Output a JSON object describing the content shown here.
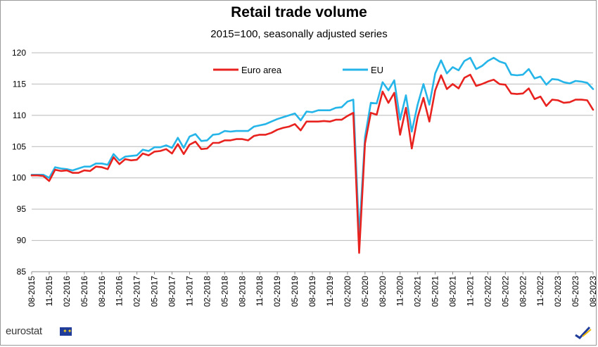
{
  "chart_data": {
    "type": "line",
    "title": "Retail trade volume",
    "subtitle": "2015=100, seasonally adjusted series",
    "ylim": [
      85,
      120
    ],
    "yticks": [
      85,
      90,
      95,
      100,
      105,
      110,
      115,
      120
    ],
    "grid": true,
    "legend_position": "top",
    "x": [
      "08-2015",
      "09-2015",
      "10-2015",
      "11-2015",
      "12-2015",
      "01-2016",
      "02-2016",
      "03-2016",
      "04-2016",
      "05-2016",
      "06-2016",
      "07-2016",
      "08-2016",
      "09-2016",
      "10-2016",
      "11-2016",
      "12-2016",
      "01-2017",
      "02-2017",
      "03-2017",
      "04-2017",
      "05-2017",
      "06-2017",
      "07-2017",
      "08-2017",
      "09-2017",
      "10-2017",
      "11-2017",
      "12-2017",
      "01-2018",
      "02-2018",
      "03-2018",
      "04-2018",
      "05-2018",
      "06-2018",
      "07-2018",
      "08-2018",
      "09-2018",
      "10-2018",
      "11-2018",
      "12-2018",
      "01-2019",
      "02-2019",
      "03-2019",
      "04-2019",
      "05-2019",
      "06-2019",
      "07-2019",
      "08-2019",
      "09-2019",
      "10-2019",
      "11-2019",
      "12-2019",
      "01-2020",
      "02-2020",
      "03-2020",
      "04-2020",
      "05-2020",
      "06-2020",
      "07-2020",
      "08-2020",
      "09-2020",
      "10-2020",
      "11-2020",
      "12-2020",
      "01-2021",
      "02-2021",
      "03-2021",
      "04-2021",
      "05-2021",
      "06-2021",
      "07-2021",
      "08-2021",
      "09-2021",
      "10-2021",
      "11-2021",
      "12-2021",
      "01-2022",
      "02-2022",
      "03-2022",
      "04-2022",
      "05-2022",
      "06-2022",
      "07-2022",
      "08-2022",
      "09-2022",
      "10-2022",
      "11-2022",
      "12-2022",
      "01-2023",
      "02-2023",
      "03-2023",
      "04-2023",
      "05-2023",
      "06-2023",
      "07-2023",
      "08-2023"
    ],
    "xtick_labels": [
      "08-2015",
      "11-2015",
      "02-2016",
      "05-2016",
      "08-2016",
      "11-2016",
      "02-2017",
      "05-2017",
      "08-2017",
      "11-2017",
      "02-2018",
      "05-2018",
      "08-2018",
      "11-2018",
      "02-2019",
      "05-2019",
      "08-2019",
      "11-2019",
      "02-2020",
      "05-2020",
      "08-2020",
      "11-2020",
      "02-2021",
      "05-2021",
      "08-2021",
      "11-2021",
      "02-2022",
      "05-2022",
      "08-2022",
      "11-2022",
      "02-2023",
      "05-2023",
      "08-2023"
    ],
    "series": [
      {
        "name": "Euro area",
        "color": "#e8231f",
        "values": [
          100.4,
          100.4,
          100.3,
          99.5,
          101.3,
          101.1,
          101.2,
          100.8,
          100.8,
          101.2,
          101.1,
          101.8,
          101.7,
          101.4,
          103.3,
          102.2,
          103.0,
          102.8,
          102.9,
          103.9,
          103.6,
          104.2,
          104.3,
          104.6,
          103.9,
          105.4,
          103.8,
          105.3,
          105.8,
          104.6,
          104.7,
          105.6,
          105.6,
          106.0,
          106.0,
          106.2,
          106.2,
          106.0,
          106.7,
          106.9,
          106.9,
          107.2,
          107.7,
          108.0,
          108.2,
          108.6,
          107.6,
          109.0,
          109.0,
          109.0,
          109.1,
          109.0,
          109.3,
          109.3,
          109.9,
          110.4,
          88.0,
          105.5,
          110.4,
          110.1,
          113.8,
          112.0,
          113.6,
          106.9,
          111.2,
          104.7,
          109.7,
          112.8,
          109.0,
          114.0,
          116.4,
          114.2,
          115.0,
          114.3,
          116.0,
          116.5,
          114.7,
          115.0,
          115.4,
          115.7,
          115.0,
          114.9,
          113.5,
          113.4,
          113.5,
          114.3,
          112.6,
          113.0,
          111.5,
          112.5,
          112.4,
          112.0,
          112.1,
          112.5,
          112.5,
          112.4,
          110.9
        ]
      },
      {
        "name": "EU",
        "color": "#26b5e8",
        "values": [
          100.5,
          100.5,
          100.5,
          100.0,
          101.7,
          101.5,
          101.4,
          101.2,
          101.5,
          101.8,
          101.8,
          102.3,
          102.3,
          102.1,
          103.8,
          102.8,
          103.4,
          103.5,
          103.6,
          104.5,
          104.3,
          104.9,
          104.9,
          105.2,
          104.8,
          106.4,
          104.8,
          106.6,
          107.0,
          105.9,
          106.0,
          106.9,
          107.0,
          107.5,
          107.4,
          107.5,
          107.5,
          107.5,
          108.2,
          108.4,
          108.6,
          109.0,
          109.4,
          109.7,
          110.0,
          110.3,
          109.2,
          110.6,
          110.5,
          110.8,
          110.8,
          110.8,
          111.2,
          111.3,
          112.2,
          112.5,
          90.7,
          106.5,
          112.0,
          111.9,
          115.3,
          114.0,
          115.6,
          109.3,
          113.2,
          107.4,
          111.7,
          115.0,
          111.7,
          116.7,
          118.8,
          116.7,
          117.7,
          117.2,
          118.7,
          119.2,
          117.4,
          117.9,
          118.7,
          119.2,
          118.6,
          118.3,
          116.5,
          116.4,
          116.5,
          117.4,
          115.9,
          116.2,
          114.9,
          115.8,
          115.7,
          115.3,
          115.1,
          115.5,
          115.4,
          115.2,
          114.2
        ]
      }
    ]
  },
  "footer": {
    "brand": "eurostat"
  }
}
